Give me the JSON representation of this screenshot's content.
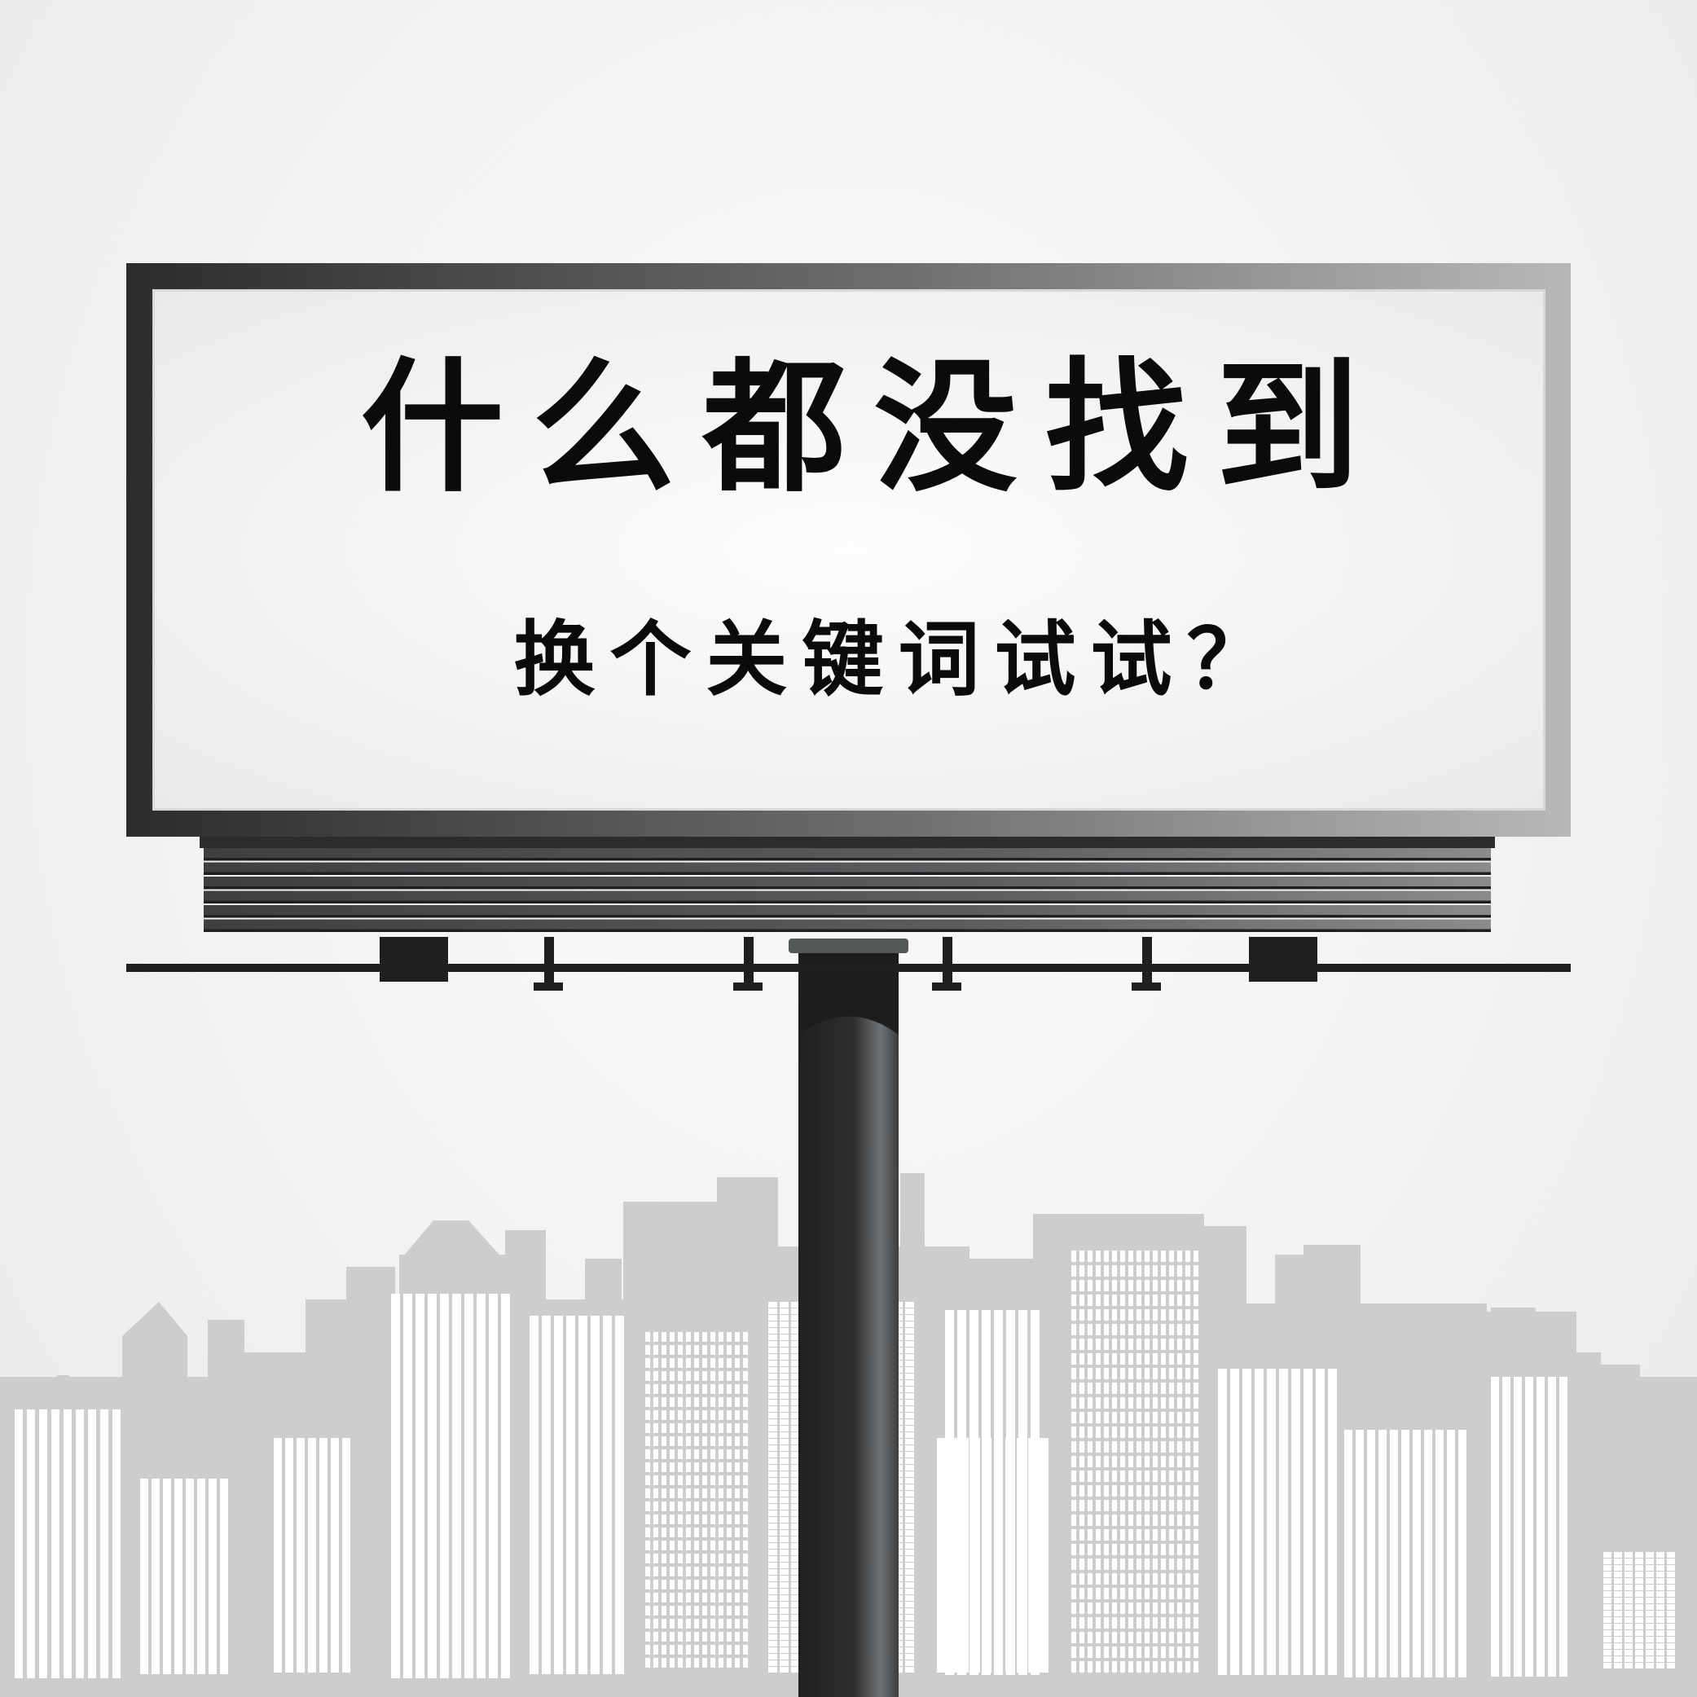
{
  "billboard": {
    "headline": "什么都没找到",
    "subline": "换个关键词试试？"
  },
  "colors": {
    "background": "#efefef",
    "skyline": "#cdcdcd",
    "window": "#ffffff",
    "frame_dark": "#2c2e2e",
    "frame_light": "#b4b4b4",
    "panel": "#f0f0f0",
    "text": "#0b0b0b",
    "pole": "#2a2b2c"
  },
  "icons": {
    "skyline": "city-skyline-icon",
    "pole": "support-pole-icon"
  }
}
